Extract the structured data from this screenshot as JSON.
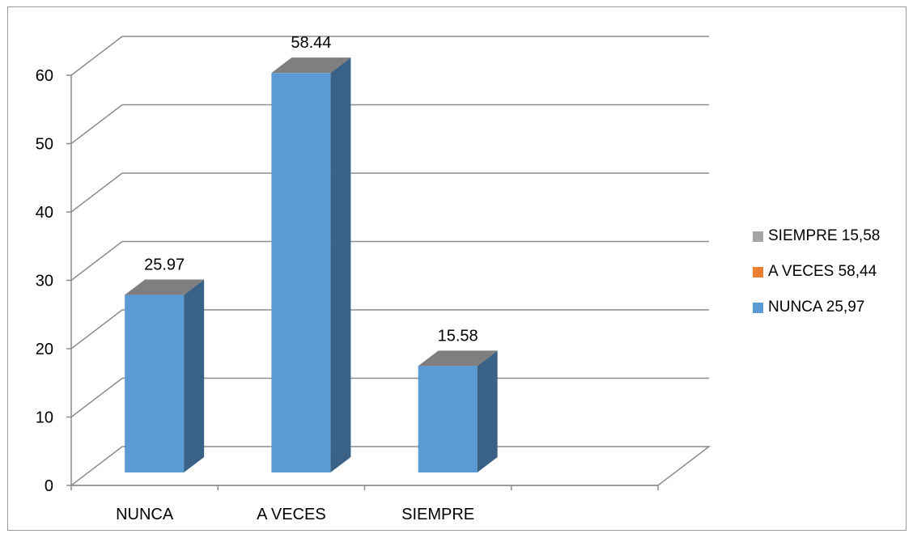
{
  "chart_data": {
    "type": "bar",
    "style": "3d-column",
    "categories": [
      "NUNCA",
      "A VECES",
      "SIEMPRE"
    ],
    "values": [
      25.97,
      58.44,
      15.58
    ],
    "data_labels": [
      "25.97",
      "58.44",
      "15.58"
    ],
    "ylim": [
      0,
      60
    ],
    "yticks": [
      "0",
      "10",
      "20",
      "30",
      "40",
      "50",
      "60"
    ],
    "grid": true,
    "legend_position": "right",
    "legend": [
      {
        "label": "SIEMPRE 15,58",
        "color": "#a5a5a5"
      },
      {
        "label": "A VECES 58,44",
        "color": "#ed7d31"
      },
      {
        "label": "NUNCA 25,97",
        "color": "#5b9bd5"
      }
    ],
    "colors": {
      "bar_front": "#5b9bd5",
      "bar_side": "#3a6186",
      "bar_top": "#7f7f7f",
      "grid": "#8c8c8c"
    }
  }
}
